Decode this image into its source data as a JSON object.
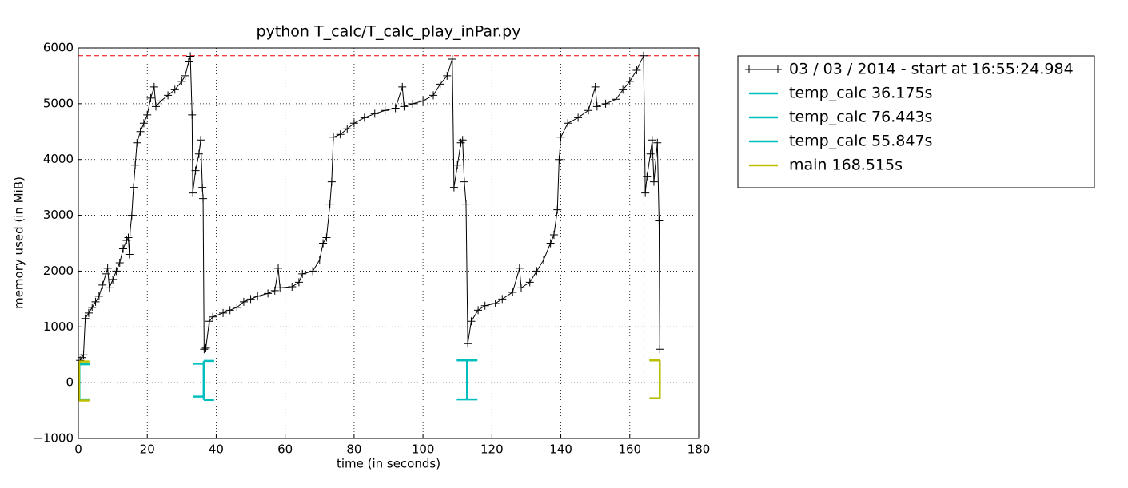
{
  "chart_data": {
    "type": "line",
    "title": "python T_calc/T_calc_play_inPar.py",
    "xlabel": "time (in seconds)",
    "ylabel": "memory used (in MiB)",
    "xlim": [
      0,
      180
    ],
    "xticks": [
      0,
      20,
      40,
      60,
      80,
      100,
      120,
      140,
      160,
      180
    ],
    "ylim": [
      -1000,
      6000
    ],
    "yticks": [
      {
        "value": -1000,
        "label": "−1000"
      },
      0,
      1000,
      2000,
      3000,
      4000,
      5000,
      6000
    ],
    "grid": true,
    "legend": "outside-right",
    "x": [
      0.5,
      1,
      1.5,
      2,
      3,
      4,
      5,
      6,
      7,
      8,
      8.5,
      9,
      10,
      11,
      12,
      13,
      14,
      14.5,
      14.8,
      15,
      15.5,
      16,
      16.5,
      17,
      18,
      19,
      20,
      21,
      22,
      22.5,
      24,
      26,
      28,
      30,
      31,
      32,
      32.5,
      33,
      33.2,
      34,
      35,
      35.5,
      36,
      36.2,
      36.5,
      37,
      38,
      39,
      42,
      44,
      46,
      48,
      50,
      52,
      55,
      57,
      58,
      58.5,
      62,
      64,
      65,
      68,
      70,
      71,
      72,
      73,
      73.5,
      74,
      76,
      78,
      80,
      83,
      86,
      89,
      92,
      94,
      94.5,
      97,
      100,
      103,
      105,
      107,
      108.5,
      109,
      110,
      111,
      111.5,
      112,
      112.5,
      113,
      114,
      116,
      118,
      121,
      123,
      126,
      128,
      128.5,
      131,
      133,
      135,
      137,
      138,
      139,
      139.5,
      140,
      142,
      145,
      148,
      150,
      150.5,
      153,
      156,
      158,
      160,
      162,
      164,
      164.5,
      165,
      166,
      166.5,
      167,
      168,
      168.5,
      168.7
    ],
    "series": [
      {
        "name": "03 / 03 / 2014 - start at 16:55:24.984",
        "color": "#000000",
        "values": [
          400,
          450,
          500,
          1150,
          1250,
          1350,
          1450,
          1550,
          1750,
          1950,
          2050,
          1700,
          1850,
          2000,
          2150,
          2400,
          2550,
          2600,
          2300,
          2700,
          3000,
          3500,
          3900,
          4300,
          4500,
          4650,
          4800,
          5100,
          5300,
          4950,
          5050,
          5150,
          5250,
          5400,
          5500,
          5750,
          5850,
          4800,
          3400,
          3800,
          4100,
          4350,
          3500,
          3300,
          600,
          620,
          1100,
          1180,
          1250,
          1300,
          1350,
          1450,
          1500,
          1550,
          1600,
          1650,
          2050,
          1700,
          1720,
          1800,
          1950,
          2000,
          2200,
          2500,
          2600,
          3200,
          3600,
          4400,
          4450,
          4550,
          4650,
          4750,
          4820,
          4880,
          4920,
          5300,
          4950,
          5000,
          5050,
          5150,
          5350,
          5500,
          5800,
          3500,
          3900,
          4300,
          4350,
          3600,
          3200,
          700,
          1100,
          1300,
          1380,
          1420,
          1500,
          1620,
          2050,
          1700,
          1800,
          2000,
          2200,
          2500,
          2650,
          3100,
          4000,
          4400,
          4650,
          4750,
          4880,
          5300,
          4950,
          5000,
          5080,
          5250,
          5400,
          5600,
          5860,
          3400,
          3700,
          4100,
          4350,
          3600,
          4300,
          2900,
          600
        ]
      }
    ],
    "functions": [
      {
        "name": "temp_calc 36.175s",
        "color": "#00bfbf",
        "start": 0.3,
        "end": 36.4,
        "start_range": [
          -300,
          330
        ],
        "end_range": [
          -250,
          340
        ]
      },
      {
        "name": "temp_calc 76.443s",
        "color": "#00bfbf",
        "start": 36.4,
        "end": 112.8,
        "start_range": [
          -310,
          390
        ],
        "end_range": [
          -300,
          400
        ]
      },
      {
        "name": "temp_calc 55.847s",
        "color": "#00bfbf",
        "start": 112.8,
        "end": 168.7,
        "start_range": [
          -300,
          400
        ],
        "end_range": [
          -280,
          400
        ]
      },
      {
        "name": "main 168.515s",
        "color": "#bfbf00",
        "start": 0.2,
        "end": 168.7,
        "start_range": [
          -320,
          380
        ],
        "end_range": [
          -280,
          400
        ]
      }
    ],
    "peak": {
      "x": 164.1,
      "y": 5860,
      "color": "#ff0000"
    }
  }
}
